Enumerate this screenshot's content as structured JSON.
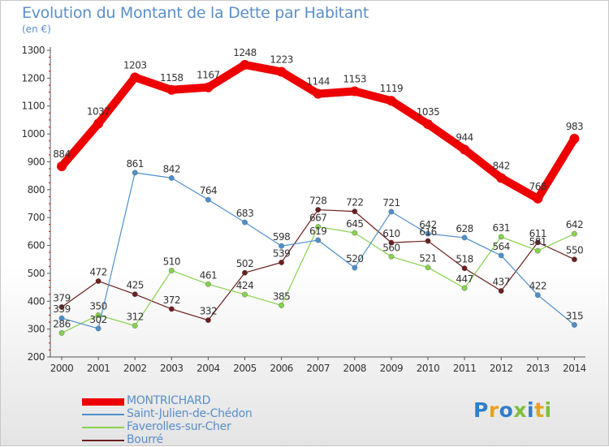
{
  "title": "Evolution du Montant de la Dette par Habitant",
  "subtitle": "(en €)",
  "logo": {
    "text": "Proxiti",
    "letter_colors": [
      "#2e7fc8",
      "#e7a21b",
      "#2e7fc8",
      "#7cbf3a",
      "#2e7fc8",
      "#e7a21b",
      "#7cbf3a"
    ]
  },
  "chart_data": {
    "type": "line",
    "title": "Evolution du Montant de la Dette par Habitant",
    "ylabel": "(en €)",
    "x": [
      "2000",
      "2001",
      "2002",
      "2003",
      "2004",
      "2005",
      "2006",
      "2007",
      "2008",
      "2009",
      "2010",
      "2011",
      "2012",
      "2013",
      "2014"
    ],
    "y_ticks": [
      "200",
      "300",
      "400",
      "500",
      "600",
      "700",
      "800",
      "900",
      "1000",
      "1100",
      "1200",
      "1300"
    ],
    "ylim": [
      200,
      1300
    ],
    "grid": false,
    "legend_position": "bottom-left",
    "series": [
      {
        "name": "MONTRICHARD",
        "color": "#ee0000",
        "values": [
          884,
          1037,
          1203,
          1158,
          1167,
          1248,
          1223,
          1144,
          1153,
          1119,
          1035,
          944,
          842,
          768,
          983
        ],
        "labels": [
          "884",
          "1037",
          "1203",
          "1158",
          "1167",
          "1248",
          "1223",
          "1144",
          "1153",
          "1119",
          "1035",
          "944",
          "842",
          "768",
          "983"
        ]
      },
      {
        "name": "Saint-Julien-de-Chédon",
        "color": "#4e8fcc",
        "values": [
          339,
          302,
          861,
          842,
          764,
          683,
          598,
          619,
          520,
          721,
          642,
          628,
          564,
          422,
          315
        ],
        "labels": [
          "339",
          "302",
          "861",
          "842",
          "764",
          "683",
          "598",
          "619",
          "520",
          "721",
          "642",
          "628",
          "564",
          "422",
          "315"
        ]
      },
      {
        "name": "Faverolles-sur-Cher",
        "color": "#86d24d",
        "values": [
          286,
          350,
          312,
          510,
          461,
          424,
          385,
          667,
          645,
          560,
          521,
          447,
          631,
          581,
          642
        ],
        "labels": [
          "286",
          "350",
          "312",
          "510",
          "461",
          "424",
          "385",
          "667",
          "645",
          "560",
          "521",
          "447",
          "631",
          "581",
          "642"
        ]
      },
      {
        "name": "Bourré",
        "color": "#6b1f1f",
        "values": [
          379,
          472,
          425,
          372,
          332,
          502,
          539,
          728,
          722,
          610,
          616,
          518,
          437,
          611,
          550
        ],
        "labels": [
          "379",
          "472",
          "425",
          "372",
          "332",
          "502",
          "539",
          "728",
          "722",
          "610",
          "616",
          "518",
          "437",
          "611",
          "550"
        ]
      }
    ]
  }
}
